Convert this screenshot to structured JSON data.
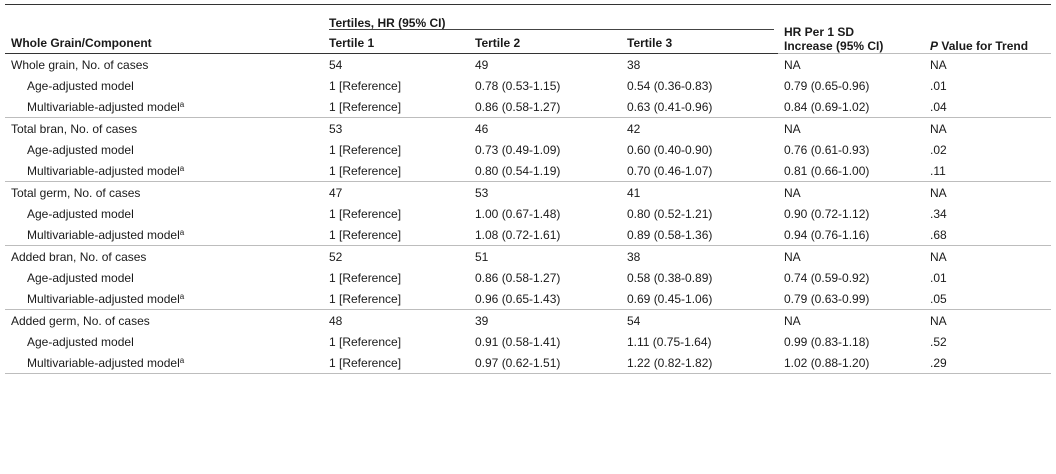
{
  "header": {
    "col0": "Whole Grain/Component",
    "tertile_group": "Tertiles, HR (95% CI)",
    "tertile1": "Tertile 1",
    "tertile2": "Tertile 2",
    "tertile3": "Tertile 3",
    "hr_line1": "HR Per 1 SD",
    "hr_line2": "Increase (95% CI)",
    "p_italic": "P",
    "p_rest": " Value for Trend"
  },
  "footnote_marker": "a",
  "rows": [
    {
      "type": "section",
      "label": "Whole grain, No. of cases",
      "t1": "54",
      "t2": "49",
      "t3": "38",
      "hr": "NA",
      "p": "NA"
    },
    {
      "type": "sub",
      "label": "Age-adjusted model",
      "t1": "1 [Reference]",
      "t2": "0.78 (0.53-1.15)",
      "t3": "0.54 (0.36-0.83)",
      "hr": "0.79 (0.65-0.96)",
      "p": ".01"
    },
    {
      "type": "sub",
      "label": "Multivariable-adjusted model",
      "sup": "a",
      "t1": "1 [Reference]",
      "t2": "0.86 (0.58-1.27)",
      "t3": "0.63 (0.41-0.96)",
      "hr": "0.84 (0.69-1.02)",
      "p": ".04"
    },
    {
      "type": "section",
      "label": "Total bran, No. of cases",
      "t1": "53",
      "t2": "46",
      "t3": "42",
      "hr": "NA",
      "p": "NA"
    },
    {
      "type": "sub",
      "label": "Age-adjusted model",
      "t1": "1 [Reference]",
      "t2": "0.73 (0.49-1.09)",
      "t3": "0.60 (0.40-0.90)",
      "hr": "0.76 (0.61-0.93)",
      "p": ".02"
    },
    {
      "type": "sub",
      "label": "Multivariable-adjusted model",
      "sup": "a",
      "t1": "1 [Reference]",
      "t2": "0.80 (0.54-1.19)",
      "t3": "0.70 (0.46-1.07)",
      "hr": "0.81 (0.66-1.00)",
      "p": ".11"
    },
    {
      "type": "section",
      "label": "Total germ, No. of cases",
      "t1": "47",
      "t2": "53",
      "t3": "41",
      "hr": "NA",
      "p": "NA"
    },
    {
      "type": "sub",
      "label": "Age-adjusted model",
      "t1": "1 [Reference]",
      "t2": "1.00 (0.67-1.48)",
      "t3": "0.80 (0.52-1.21)",
      "hr": "0.90 (0.72-1.12)",
      "p": ".34"
    },
    {
      "type": "sub",
      "label": "Multivariable-adjusted model",
      "sup": "a",
      "t1": "1 [Reference]",
      "t2": "1.08 (0.72-1.61)",
      "t3": "0.89 (0.58-1.36)",
      "hr": "0.94 (0.76-1.16)",
      "p": ".68"
    },
    {
      "type": "section",
      "label": "Added bran, No. of cases",
      "t1": "52",
      "t2": "51",
      "t3": "38",
      "hr": "NA",
      "p": "NA"
    },
    {
      "type": "sub",
      "label": "Age-adjusted model",
      "t1": "1 [Reference]",
      "t2": "0.86 (0.58-1.27)",
      "t3": "0.58 (0.38-0.89)",
      "hr": "0.74 (0.59-0.92)",
      "p": ".01"
    },
    {
      "type": "sub",
      "label": "Multivariable-adjusted model",
      "sup": "a",
      "t1": "1 [Reference]",
      "t2": "0.96 (0.65-1.43)",
      "t3": "0.69 (0.45-1.06)",
      "hr": "0.79 (0.63-0.99)",
      "p": ".05"
    },
    {
      "type": "section",
      "label": "Added germ, No. of cases",
      "t1": "48",
      "t2": "39",
      "t3": "54",
      "hr": "NA",
      "p": "NA"
    },
    {
      "type": "sub",
      "label": "Age-adjusted model",
      "t1": "1 [Reference]",
      "t2": "0.91 (0.58-1.41)",
      "t3": "1.11 (0.75-1.64)",
      "hr": "0.99 (0.83-1.18)",
      "p": ".52"
    },
    {
      "type": "sub",
      "label": "Multivariable-adjusted model",
      "sup": "a",
      "t1": "1 [Reference]",
      "t2": "0.97 (0.62-1.51)",
      "t3": "1.22 (0.82-1.82)",
      "hr": "1.02 (0.88-1.20)",
      "p": ".29"
    }
  ]
}
